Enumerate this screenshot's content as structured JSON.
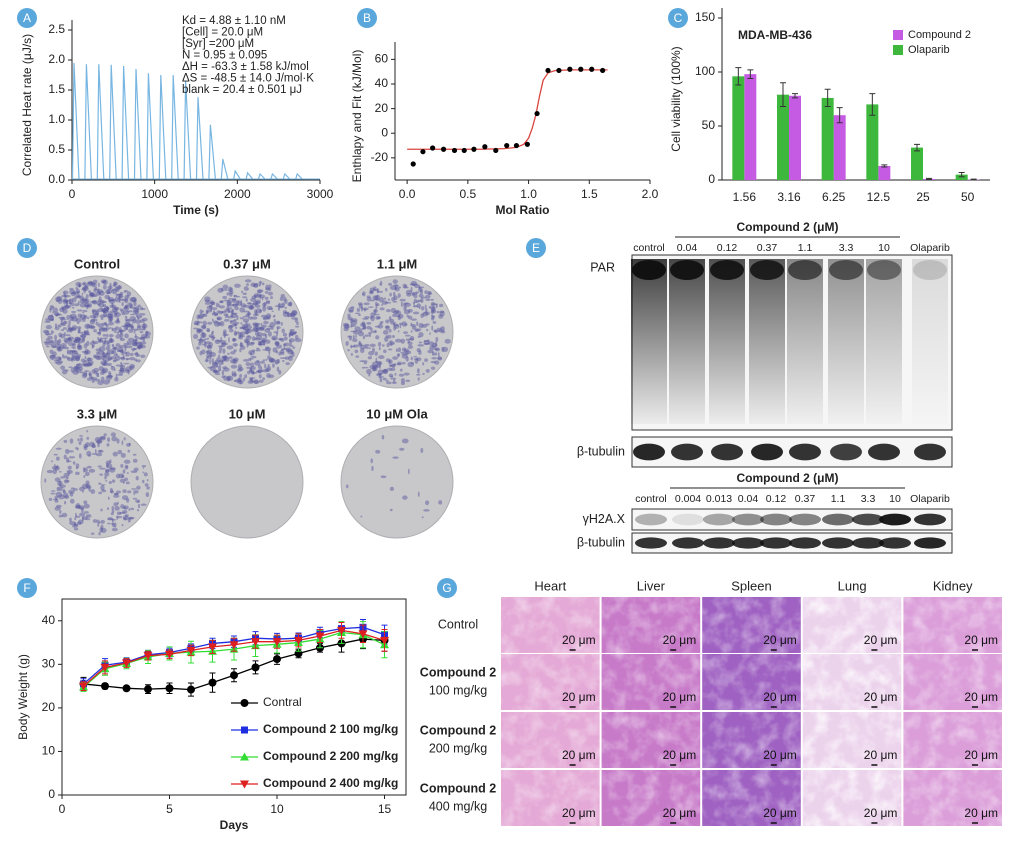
{
  "panel_labels": [
    "A",
    "B",
    "C",
    "D",
    "E",
    "F",
    "G"
  ],
  "chart_data": [
    {
      "type": "injections",
      "x_label": "Time (s)",
      "y_label": "Correlated Heat rate (μJ/s)",
      "annotations": [
        "Kd = 4.88 ± 1.10 nM",
        "[Cell] = 20.0 μM",
        "[Syr] =200 μM",
        "N = 0.95 ± 0.095",
        "ΔH  = -63.3 ±  1.58 kJ/mol",
        "ΔS = -48.5 ± 14.0 J/mol·K",
        "blank = 20.4 ± 0.501 μJ"
      ],
      "x": [
        0,
        150,
        300,
        450,
        600,
        750,
        900,
        1050,
        1200,
        1350,
        1500,
        1650,
        1800,
        1950,
        2100,
        2250,
        2400,
        2550,
        2700
      ],
      "values": [
        1.95,
        1.93,
        1.93,
        1.92,
        1.9,
        1.85,
        1.78,
        1.75,
        1.75,
        1.65,
        1.38,
        0.92,
        0.35,
        0.15,
        0.12,
        0.1,
        0.1,
        0.1,
        0.1
      ],
      "color": "#78b6e2",
      "xlim": [
        0,
        3000
      ],
      "xticks": [
        0,
        1000,
        2000,
        3000
      ],
      "ylim": [
        0,
        2.5
      ],
      "yticks": [
        {
          "value": 0,
          "label": "0.0"
        },
        0.5,
        {
          "value": 1,
          "label": "1.0"
        },
        1.5,
        {
          "value": 2,
          "label": "2.0"
        },
        2.5
      ]
    },
    {
      "type": "itc_fit",
      "x_label": "Mol Ratio",
      "y_label": "Enthlapy and Fit (kJ/Mol)",
      "x": [
        0.05,
        0.13,
        0.21,
        0.3,
        0.39,
        0.47,
        0.55,
        0.64,
        0.73,
        0.82,
        0.9,
        0.99,
        1.07,
        1.16,
        1.25,
        1.34,
        1.43,
        1.52,
        1.61
      ],
      "values": [
        -25,
        -15,
        -12,
        -13,
        -14,
        -14,
        -13,
        -11,
        -14,
        -10,
        -10,
        -9,
        16,
        51,
        51,
        52,
        52,
        52,
        51
      ],
      "color": "#000000",
      "fit": {
        "x": [
          0,
          0.2,
          0.4,
          0.6,
          0.8,
          0.9,
          0.96,
          1.0,
          1.03,
          1.06,
          1.09,
          1.12,
          1.16,
          1.22,
          1.35,
          1.65
        ],
        "values": [
          -13,
          -13,
          -13,
          -13,
          -12.5,
          -11.5,
          -9,
          -4,
          4,
          15,
          30,
          43,
          49,
          51,
          51.5,
          51.5
        ],
        "color": "#d9453f"
      },
      "xlim": [
        -0.1,
        2.0
      ],
      "xticks": [
        {
          "value": 0,
          "label": "0.0"
        },
        0.5,
        {
          "value": 1,
          "label": "1.0"
        },
        1.5,
        {
          "value": 2,
          "label": "2.0"
        }
      ],
      "ylim": [
        -38,
        66
      ],
      "yticks": [
        -20,
        0,
        20,
        40,
        60
      ]
    },
    {
      "type": "grouped_bar",
      "annotation": "MDA-MB-436",
      "y_label": "Cell viability (100%)",
      "categories": [
        "1.56",
        "3.16",
        "6.25",
        "12.5",
        "25",
        "50"
      ],
      "series": [
        {
          "name": "Compound 2",
          "color": "#c65be3",
          "values": [
            98,
            78,
            60,
            13,
            1,
            0.5
          ],
          "errors": [
            4,
            2,
            7,
            1,
            0.5,
            0.3
          ]
        },
        {
          "name": "Olaparib",
          "color": "#3db83d",
          "values": [
            96,
            79,
            76,
            70,
            30,
            5
          ],
          "errors": [
            8,
            11,
            8,
            10,
            3,
            2
          ]
        }
      ],
      "ylim": [
        0,
        150
      ],
      "yticks": [
        0,
        50,
        100,
        150
      ],
      "legend": "upper right"
    },
    {
      "type": "line",
      "x_label": "Days",
      "y_label": "Body Weight (g)",
      "x": [
        1,
        2,
        3,
        4,
        5,
        6,
        7,
        8,
        9,
        10,
        11,
        12,
        13,
        14,
        15
      ],
      "series": [
        {
          "name": "Contral",
          "color": "#000000",
          "marker": "circle",
          "values": [
            25.5,
            25,
            24.5,
            24.3,
            24.5,
            24.2,
            25.8,
            27.5,
            29.3,
            31.2,
            32.5,
            33.8,
            34.8,
            35.8,
            35.5
          ],
          "errors": [
            1.5,
            0.6,
            0.5,
            1,
            1.2,
            1.5,
            2.2,
            1.5,
            1.5,
            1.2,
            1,
            1,
            2,
            2.2,
            2.5
          ]
        },
        {
          "name": "Compound 2 100 mg/kg",
          "color": "#1f2fe0",
          "marker": "square",
          "values": [
            25.5,
            29.8,
            30.5,
            32.2,
            32.7,
            33.7,
            34.8,
            35.2,
            36,
            35.8,
            36,
            37.3,
            38.2,
            38.5,
            36.8
          ],
          "errors": [
            1.2,
            1.5,
            1,
            1,
            1,
            1,
            1.2,
            1.3,
            1.5,
            1.3,
            1.2,
            1.2,
            1.5,
            1.8,
            2.2
          ]
        },
        {
          "name": "Compound 2 200 mg/kg",
          "color": "#33dd33",
          "marker": "triangle-up",
          "values": [
            24.8,
            29,
            30.2,
            31.7,
            32.5,
            32.8,
            33,
            33.5,
            34.3,
            34.6,
            35,
            35.8,
            37.3,
            36.8,
            34.5
          ],
          "errors": [
            1,
            1.5,
            1.2,
            1.5,
            1.5,
            2.5,
            2.5,
            2.5,
            2.5,
            2,
            2,
            2,
            2.5,
            3,
            3
          ]
        },
        {
          "name": "Compound 2 400 mg/kg",
          "color": "#dd1f1f",
          "marker": "triangle-down",
          "values": [
            25,
            29.3,
            30.3,
            32,
            32.3,
            33.2,
            34,
            34.5,
            35.2,
            35.2,
            35.5,
            36.5,
            37.8,
            37,
            35.5
          ],
          "errors": [
            1,
            1.5,
            1,
            1,
            1,
            1.2,
            1.5,
            1.5,
            1.5,
            1.5,
            1.5,
            1.5,
            1.8,
            2,
            2.5
          ]
        }
      ],
      "xlim": [
        0,
        16
      ],
      "xticks": [
        0,
        5,
        10,
        15
      ],
      "ylim": [
        0,
        45
      ],
      "yticks": [
        0,
        10,
        20,
        30,
        40
      ],
      "legend": "lower right"
    }
  ],
  "colony_assay": {
    "labels": [
      "Control",
      "0.37 μM",
      "1.1 μM",
      "3.3 μM",
      "10 μM",
      "10 μM Ola"
    ]
  },
  "western_blot": {
    "par": {
      "header": "Compound 2 (μM)",
      "lanes": [
        "control",
        "0.04",
        "0.12",
        "0.37",
        "1.1",
        "3.3",
        "10",
        "Olaparib"
      ],
      "rows": [
        "PAR",
        "β-tubulin"
      ]
    },
    "h2ax": {
      "header": "Compound 2 (μM)",
      "lanes": [
        "control",
        "0.004",
        "0.013",
        "0.04",
        "0.12",
        "0.37",
        "1.1",
        "3.3",
        "10",
        "Olaparib"
      ],
      "rows": [
        "γH2A.X",
        "β-tubulin"
      ]
    }
  },
  "histology": {
    "columns": [
      "Heart",
      "Liver",
      "Spleen",
      "Lung",
      "Kidney"
    ],
    "rows": [
      [
        "Control"
      ],
      [
        "Compound 2",
        "100 mg/kg"
      ],
      [
        "Compound 2",
        "200 mg/kg"
      ],
      [
        "Compound 2",
        "400 mg/kg"
      ]
    ],
    "scale_bar": "20 μm"
  }
}
